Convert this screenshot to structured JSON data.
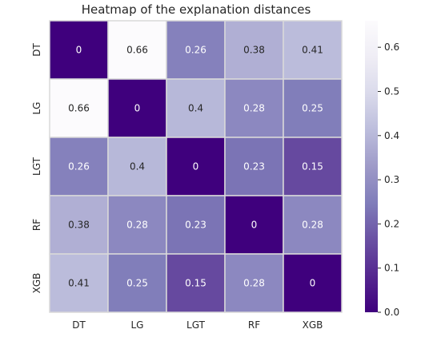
{
  "chart_data": {
    "type": "heatmap",
    "title": "Heatmap of the explanation distances",
    "x_labels": [
      "DT",
      "LG",
      "LGT",
      "RF",
      "XGB"
    ],
    "y_labels": [
      "DT",
      "LG",
      "LGT",
      "RF",
      "XGB"
    ],
    "values": [
      [
        0,
        0.66,
        0.26,
        0.38,
        0.41
      ],
      [
        0.66,
        0,
        0.4,
        0.28,
        0.25
      ],
      [
        0.26,
        0.4,
        0,
        0.23,
        0.15
      ],
      [
        0.38,
        0.28,
        0.23,
        0,
        0.28
      ],
      [
        0.41,
        0.25,
        0.15,
        0.28,
        0
      ]
    ],
    "annotations": [
      [
        "0",
        "0.66",
        "0.26",
        "0.38",
        "0.41"
      ],
      [
        "0.66",
        "0",
        "0.4",
        "0.28",
        "0.25"
      ],
      [
        "0.26",
        "0.4",
        "0",
        "0.23",
        "0.15"
      ],
      [
        "0.38",
        "0.28",
        "0.23",
        "0",
        "0.28"
      ],
      [
        "0.41",
        "0.25",
        "0.15",
        "0.28",
        "0"
      ]
    ],
    "colormap": "Purples_r",
    "vmin": 0,
    "vmax": 0.66,
    "colorbar_ticks": [
      0.0,
      0.1,
      0.2,
      0.3,
      0.4,
      0.5,
      0.6
    ],
    "colorbar_tick_labels": [
      "0.0",
      "0.1",
      "0.2",
      "0.3",
      "0.4",
      "0.5",
      "0.6"
    ],
    "colors": {
      "cell_border": "#d9d9d9",
      "dark_text": "#262626",
      "light_text": "#ffffff"
    }
  }
}
